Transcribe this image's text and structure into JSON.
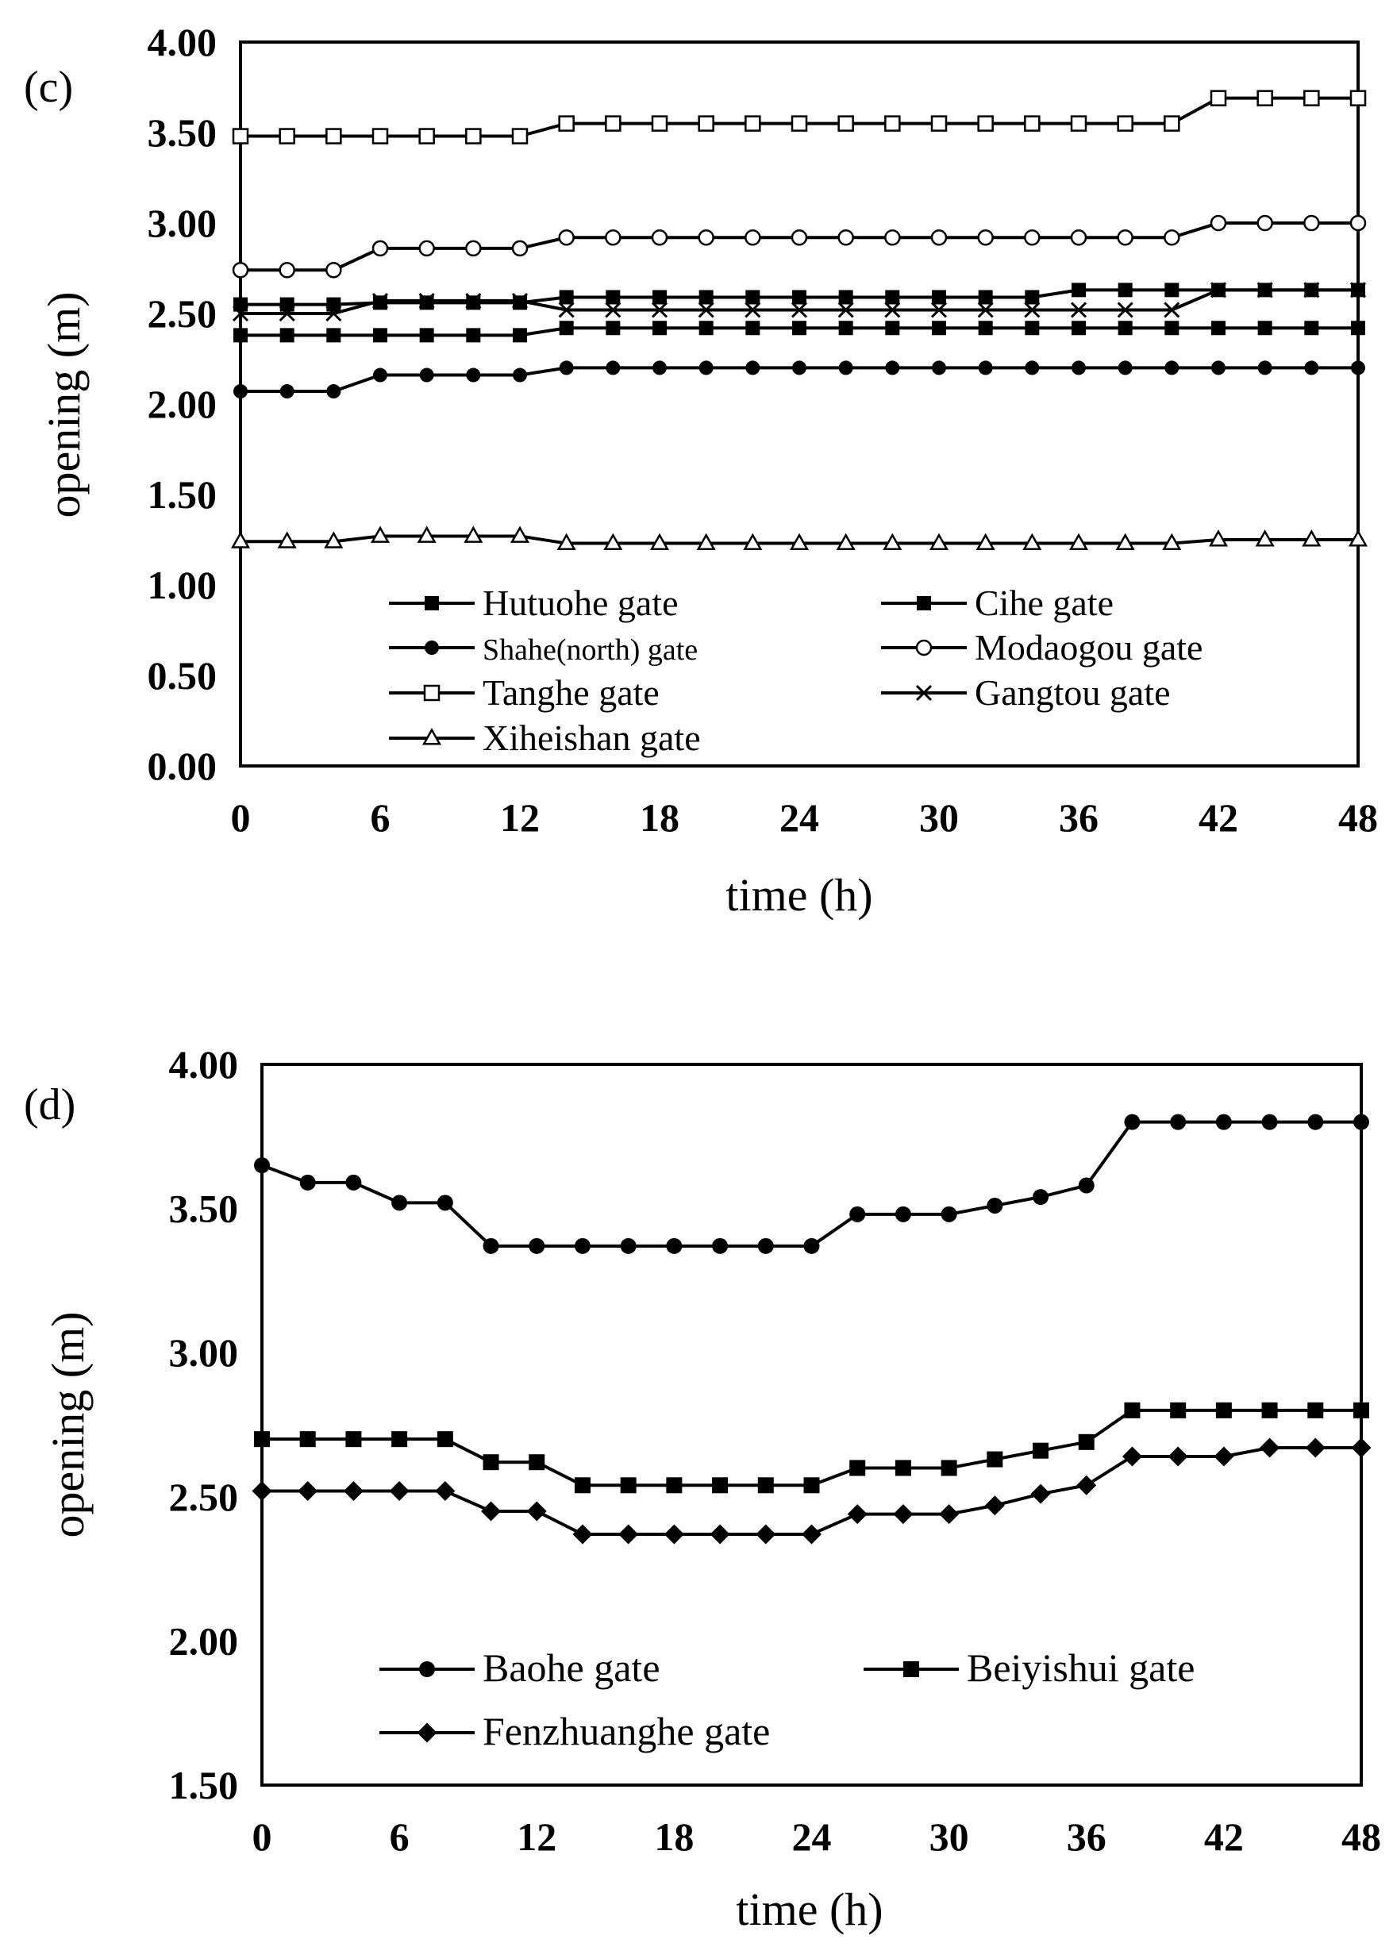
{
  "chart_data": [
    {
      "type": "line",
      "panel_label": "(c)",
      "xlabel": "time (h)",
      "ylabel": "opening (m)",
      "xlim": [
        0,
        48
      ],
      "ylim": [
        0,
        4
      ],
      "x_ticks": [
        0,
        6,
        12,
        18,
        24,
        30,
        36,
        42,
        48
      ],
      "x_tick_labels": [
        "0",
        "6",
        "12",
        "18",
        "24",
        "30",
        "36",
        "42",
        "48"
      ],
      "y_ticks": [
        0,
        0.5,
        1,
        1.5,
        2,
        2.5,
        3,
        3.5,
        4
      ],
      "y_tick_labels": [
        "0.00",
        "0.50",
        "1.00",
        "1.50",
        "2.00",
        "2.50",
        "3.00",
        "3.50",
        "4.00"
      ],
      "x": [
        0,
        2,
        4,
        6,
        8,
        10,
        12,
        14,
        16,
        18,
        20,
        22,
        24,
        26,
        28,
        30,
        32,
        34,
        36,
        38,
        40,
        42,
        44,
        46,
        48
      ],
      "series": [
        {
          "name": "Hutuohe gate",
          "marker": "square-filled",
          "values": [
            2.38,
            2.38,
            2.38,
            2.38,
            2.38,
            2.38,
            2.38,
            2.42,
            2.42,
            2.42,
            2.42,
            2.42,
            2.42,
            2.42,
            2.42,
            2.42,
            2.42,
            2.42,
            2.42,
            2.42,
            2.42,
            2.42,
            2.42,
            2.42,
            2.42
          ]
        },
        {
          "name": "Cihe gate",
          "marker": "square-filled",
          "values": [
            2.55,
            2.55,
            2.55,
            2.56,
            2.56,
            2.56,
            2.56,
            2.59,
            2.59,
            2.59,
            2.59,
            2.59,
            2.59,
            2.59,
            2.59,
            2.59,
            2.59,
            2.59,
            2.63,
            2.63,
            2.63,
            2.63,
            2.63,
            2.63,
            2.63
          ]
        },
        {
          "name": "Shahe(north) gate",
          "marker": "circle-filled",
          "values": [
            2.07,
            2.07,
            2.07,
            2.16,
            2.16,
            2.16,
            2.16,
            2.2,
            2.2,
            2.2,
            2.2,
            2.2,
            2.2,
            2.2,
            2.2,
            2.2,
            2.2,
            2.2,
            2.2,
            2.2,
            2.2,
            2.2,
            2.2,
            2.2,
            2.2
          ]
        },
        {
          "name": "Modaogou gate",
          "marker": "circle-open",
          "values": [
            2.74,
            2.74,
            2.74,
            2.86,
            2.86,
            2.86,
            2.86,
            2.92,
            2.92,
            2.92,
            2.92,
            2.92,
            2.92,
            2.92,
            2.92,
            2.92,
            2.92,
            2.92,
            2.92,
            2.92,
            2.92,
            3.0,
            3.0,
            3.0,
            3.0
          ]
        },
        {
          "name": "Tanghe gate",
          "marker": "square-open",
          "values": [
            3.48,
            3.48,
            3.48,
            3.48,
            3.48,
            3.48,
            3.48,
            3.55,
            3.55,
            3.55,
            3.55,
            3.55,
            3.55,
            3.55,
            3.55,
            3.55,
            3.55,
            3.55,
            3.55,
            3.55,
            3.55,
            3.69,
            3.69,
            3.69,
            3.69
          ]
        },
        {
          "name": "Gangtou gate",
          "marker": "x",
          "values": [
            2.5,
            2.5,
            2.5,
            2.57,
            2.57,
            2.57,
            2.57,
            2.52,
            2.52,
            2.52,
            2.52,
            2.52,
            2.52,
            2.52,
            2.52,
            2.52,
            2.52,
            2.52,
            2.52,
            2.52,
            2.52,
            2.63,
            2.63,
            2.63,
            2.63
          ]
        },
        {
          "name": "Xiheishan gate",
          "marker": "triangle-open",
          "values": [
            1.24,
            1.24,
            1.24,
            1.27,
            1.27,
            1.27,
            1.27,
            1.23,
            1.23,
            1.23,
            1.23,
            1.23,
            1.23,
            1.23,
            1.23,
            1.23,
            1.23,
            1.23,
            1.23,
            1.23,
            1.23,
            1.25,
            1.25,
            1.25,
            1.25
          ]
        }
      ]
    },
    {
      "type": "line",
      "panel_label": "(d)",
      "xlabel": "time (h)",
      "ylabel": "opening (m)",
      "xlim": [
        0,
        48
      ],
      "ylim": [
        1.5,
        4
      ],
      "x_ticks": [
        0,
        6,
        12,
        18,
        24,
        30,
        36,
        42,
        48
      ],
      "x_tick_labels": [
        "0",
        "6",
        "12",
        "18",
        "24",
        "30",
        "36",
        "42",
        "48"
      ],
      "y_ticks": [
        1.5,
        2,
        2.5,
        3,
        3.5,
        4
      ],
      "y_tick_labels": [
        "1.50",
        "2.00",
        "2.50",
        "3.00",
        "3.50",
        "4.00"
      ],
      "x": [
        0,
        2,
        4,
        6,
        8,
        10,
        12,
        14,
        16,
        18,
        20,
        22,
        24,
        26,
        28,
        30,
        32,
        34,
        36,
        38,
        40,
        42,
        44,
        46,
        48
      ],
      "series": [
        {
          "name": "Baohe gate",
          "marker": "circle-filled",
          "values": [
            3.65,
            3.59,
            3.59,
            3.52,
            3.52,
            3.37,
            3.37,
            3.37,
            3.37,
            3.37,
            3.37,
            3.37,
            3.37,
            3.48,
            3.48,
            3.48,
            3.51,
            3.54,
            3.58,
            3.8,
            3.8,
            3.8,
            3.8,
            3.8,
            3.8
          ]
        },
        {
          "name": "Beiyishui gate",
          "marker": "square-filled",
          "values": [
            2.7,
            2.7,
            2.7,
            2.7,
            2.7,
            2.62,
            2.62,
            2.54,
            2.54,
            2.54,
            2.54,
            2.54,
            2.54,
            2.6,
            2.6,
            2.6,
            2.63,
            2.66,
            2.69,
            2.8,
            2.8,
            2.8,
            2.8,
            2.8,
            2.8
          ]
        },
        {
          "name": "Fenzhuanghe gate",
          "marker": "diamond-filled",
          "values": [
            2.52,
            2.52,
            2.52,
            2.52,
            2.52,
            2.45,
            2.45,
            2.37,
            2.37,
            2.37,
            2.37,
            2.37,
            2.37,
            2.44,
            2.44,
            2.44,
            2.47,
            2.51,
            2.54,
            2.64,
            2.64,
            2.64,
            2.67,
            2.67,
            2.67
          ]
        }
      ]
    }
  ]
}
